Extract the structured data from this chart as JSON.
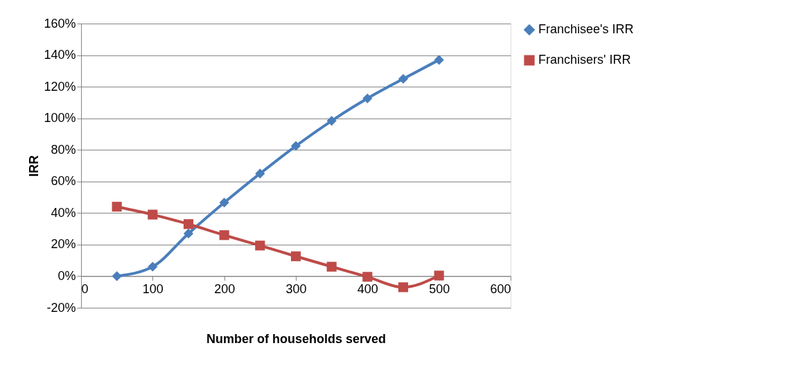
{
  "chart_data": {
    "type": "line",
    "xlabel": "Number of households served",
    "ylabel": "IRR",
    "x": [
      50,
      100,
      150,
      200,
      250,
      300,
      350,
      400,
      450,
      500
    ],
    "series": [
      {
        "name": "Franchisee's IRR",
        "color": "#4a7ebb",
        "marker": "diamond",
        "values": [
          0,
          6,
          27,
          46.6,
          65,
          82.5,
          98.4,
          112.6,
          125,
          137
        ]
      },
      {
        "name": "Franchisers' IRR",
        "color": "#be4b48",
        "marker": "square",
        "values": [
          44,
          39,
          33,
          26,
          19.4,
          12.6,
          6,
          -0.4,
          -7,
          0.4
        ]
      }
    ],
    "xlim": [
      0,
      600
    ],
    "xticks": [
      0,
      100,
      200,
      300,
      400,
      500,
      600
    ],
    "ylim": [
      -20,
      160
    ],
    "yticks": [
      {
        "value": -20,
        "label": "-20%"
      },
      {
        "value": 0,
        "label": "0%"
      },
      {
        "value": 20,
        "label": "20%"
      },
      {
        "value": 40,
        "label": "40%"
      },
      {
        "value": 60,
        "label": "60%"
      },
      {
        "value": 80,
        "label": "80%"
      },
      {
        "value": 100,
        "label": "100%"
      },
      {
        "value": 120,
        "label": "120%"
      },
      {
        "value": 140,
        "label": "140%"
      },
      {
        "value": 160,
        "label": "160%"
      }
    ],
    "grid": "y",
    "legend": "right",
    "line_style": "solid"
  }
}
